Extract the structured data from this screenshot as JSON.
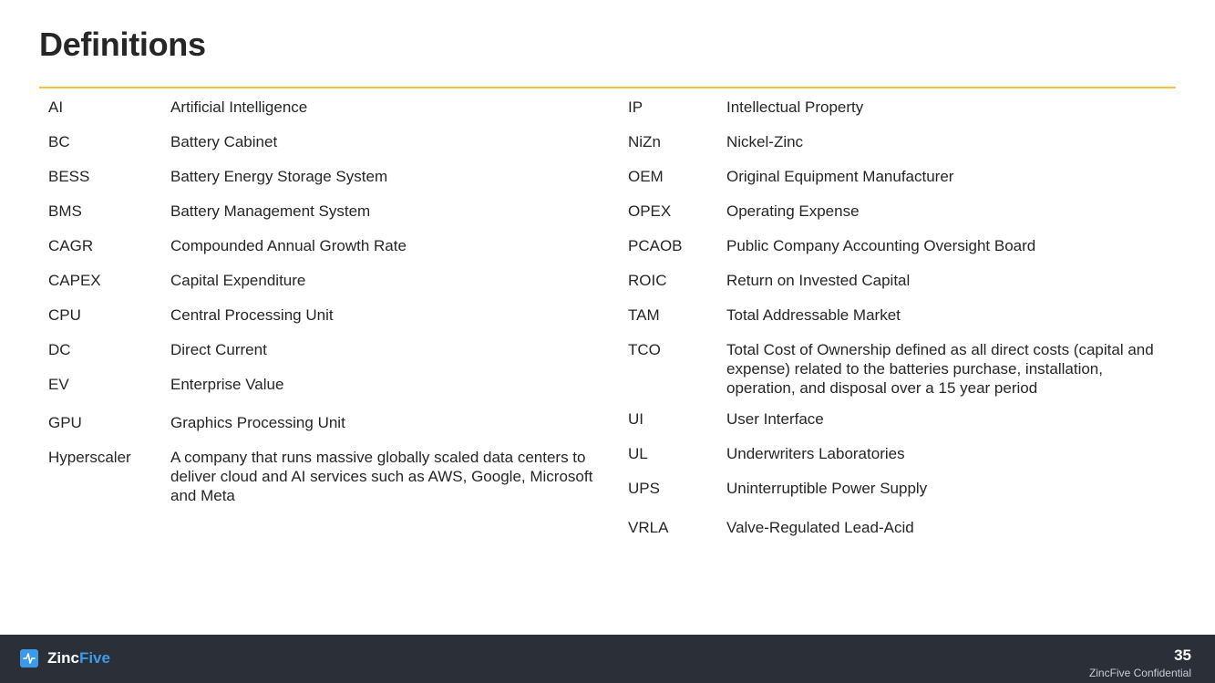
{
  "title": "Definitions",
  "colors": {
    "accent_rule": "#f5c342",
    "footer_bg": "#2b2f38",
    "brand_blue": "#3d9ae8"
  },
  "definitions_left": [
    {
      "abbr": "AI",
      "definition": "Artificial Intelligence"
    },
    {
      "abbr": "BC",
      "definition": "Battery Cabinet"
    },
    {
      "abbr": "BESS",
      "definition": "Battery Energy Storage System"
    },
    {
      "abbr": "BMS",
      "definition": "Battery Management System"
    },
    {
      "abbr": "CAGR",
      "definition": "Compounded Annual Growth Rate"
    },
    {
      "abbr": "CAPEX",
      "definition": "Capital Expenditure"
    },
    {
      "abbr": "CPU",
      "definition": "Central Processing Unit"
    },
    {
      "abbr": "DC",
      "definition": "Direct Current"
    },
    {
      "abbr": "EV",
      "definition": "Enterprise Value"
    },
    {
      "abbr": "GPU",
      "definition": "Graphics Processing Unit"
    },
    {
      "abbr": "Hyperscaler",
      "definition": "A company that runs massive globally scaled data centers to deliver cloud and AI services such as AWS, Google, Microsoft and Meta"
    }
  ],
  "definitions_right": [
    {
      "abbr": "IP",
      "definition": "Intellectual Property"
    },
    {
      "abbr": "NiZn",
      "definition": "Nickel-Zinc"
    },
    {
      "abbr": "OEM",
      "definition": "Original Equipment Manufacturer"
    },
    {
      "abbr": "OPEX",
      "definition": "Operating Expense"
    },
    {
      "abbr": "PCAOB",
      "definition": "Public Company Accounting Oversight Board"
    },
    {
      "abbr": "ROIC",
      "definition": "Return on Invested Capital"
    },
    {
      "abbr": "TAM",
      "definition": "Total Addressable Market"
    },
    {
      "abbr": "TCO",
      "definition": "Total Cost of Ownership defined as all direct costs (capital and expense) related to the batteries purchase, installation, operation, and disposal over a 15 year period"
    },
    {
      "abbr": "UI",
      "definition": "User Interface"
    },
    {
      "abbr": "UL",
      "definition": "Underwriters Laboratories"
    },
    {
      "abbr": "UPS",
      "definition": "Uninterruptible Power Supply"
    },
    {
      "abbr": "VRLA",
      "definition": "Valve-Regulated Lead-Acid"
    }
  ],
  "footer": {
    "logo_text_main": "Zinc",
    "logo_text_accent": "Five",
    "logo_icon": "zincfive-logo-icon",
    "page_number": "35",
    "confidential": "ZincFive Confidential"
  }
}
